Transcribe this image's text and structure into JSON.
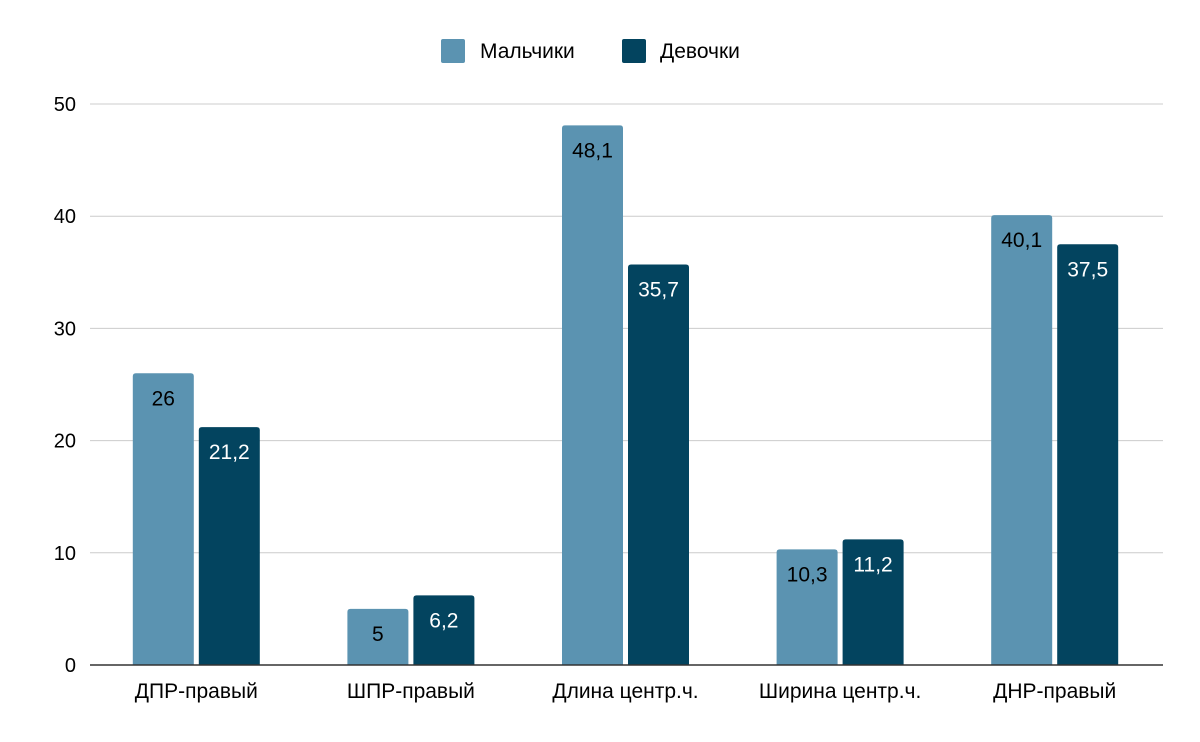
{
  "chart_data": {
    "type": "bar",
    "title": "",
    "xlabel": "",
    "ylabel": "",
    "categories": [
      "ДПР-правый",
      "ШПР-правый",
      "Длина центр.ч.",
      "Ширина центр.ч.",
      "ДНР-правый"
    ],
    "series": [
      {
        "name": "Мальчики",
        "values": [
          26,
          5,
          48.1,
          10.3,
          40.1
        ],
        "labels": [
          "26",
          "5",
          "48,1",
          "10,3",
          "40,1"
        ],
        "color": "#5b93b1",
        "label_color": "#000000"
      },
      {
        "name": "Девочки",
        "values": [
          21.2,
          6.2,
          35.7,
          11.2,
          37.5
        ],
        "labels": [
          "21,2",
          "6,2",
          "35,7",
          "11,2",
          "37,5"
        ],
        "color": "#03445f",
        "label_color": "#ffffff"
      }
    ],
    "ylim": [
      0,
      50
    ],
    "yticks": [
      0,
      10,
      20,
      30,
      40,
      50
    ],
    "grid": true,
    "legend_position": "top-center"
  }
}
